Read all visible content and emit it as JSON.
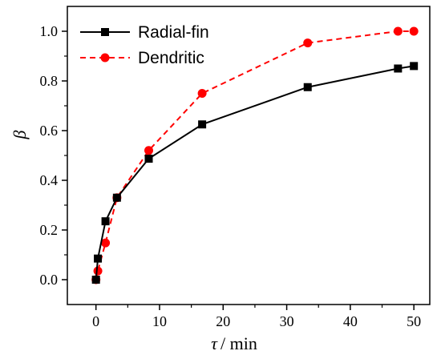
{
  "chart_data": {
    "type": "line",
    "xlabel_symbol": "τ",
    "xlabel_unit": "/ min",
    "ylabel": "β",
    "xlim": [
      -4.5,
      52.5
    ],
    "ylim": [
      -0.1,
      1.1
    ],
    "xticks": [
      0,
      10,
      20,
      30,
      40,
      50
    ],
    "yticks": [
      0.0,
      0.2,
      0.4,
      0.6,
      0.8,
      1.0
    ],
    "xtick_labels": [
      "0",
      "10",
      "20",
      "30",
      "40",
      "50"
    ],
    "ytick_labels": [
      "0.0",
      "0.2",
      "0.4",
      "0.6",
      "0.8",
      "1.0"
    ],
    "legend_position": "top-left",
    "series": [
      {
        "name": "Radial-fin",
        "color": "#000000",
        "marker": "square",
        "line": "solid",
        "x": [
          0,
          0.3,
          1.5,
          3.3,
          8.3,
          16.7,
          33.3,
          47.5,
          50
        ],
        "y": [
          0.0,
          0.085,
          0.235,
          0.33,
          0.487,
          0.625,
          0.775,
          0.85,
          0.86
        ]
      },
      {
        "name": "Dendritic",
        "color": "#ff0000",
        "marker": "circle",
        "line": "dashed",
        "x": [
          0,
          0.3,
          1.5,
          3.3,
          8.3,
          16.7,
          33.3,
          47.5,
          50
        ],
        "y": [
          0.0,
          0.035,
          0.148,
          0.33,
          0.52,
          0.75,
          0.953,
          1.0,
          1.0
        ]
      }
    ]
  }
}
